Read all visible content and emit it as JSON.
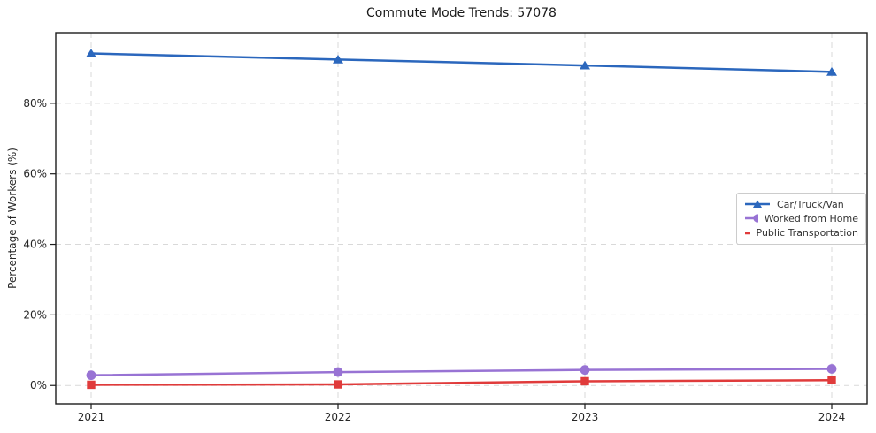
{
  "chart_data": {
    "type": "line",
    "title": "Commute Mode Trends: 57078",
    "xlabel": "",
    "ylabel": "Percentage of Workers (%)",
    "categories": [
      "2021",
      "2022",
      "2023",
      "2024"
    ],
    "series": [
      {
        "name": "Car/Truck/Van",
        "marker": "triangle",
        "color": "#2b67bd",
        "values": [
          94.1,
          92.4,
          90.7,
          88.9
        ]
      },
      {
        "name": "Worked from Home",
        "marker": "circle",
        "color": "#9873d4",
        "values": [
          2.9,
          3.8,
          4.4,
          4.7
        ]
      },
      {
        "name": "Public Transportation",
        "marker": "square",
        "color": "#e03b3b",
        "values": [
          0.2,
          0.3,
          1.2,
          1.5
        ]
      }
    ],
    "yticks": {
      "values": [
        0,
        20,
        40,
        60,
        80
      ],
      "labels": [
        "0%",
        "20%",
        "40%",
        "60%",
        "80%"
      ]
    },
    "ylim": [
      -5.2,
      100
    ],
    "grid": true,
    "grid_style": "dashed",
    "grid_color": "#d9d9d9",
    "axis_color": "#1c1c1c",
    "tick_label_color": "#262626",
    "legend_position": "center-right"
  }
}
